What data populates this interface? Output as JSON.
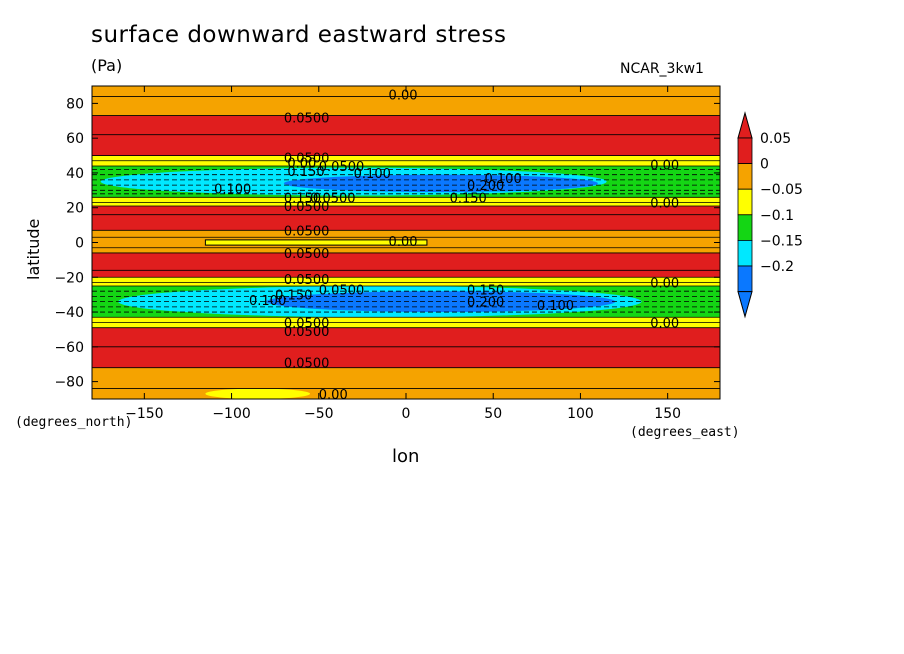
{
  "title": "surface downward eastward stress",
  "units": "(Pa)",
  "model": "NCAR_3kw1",
  "xlabel": "lon",
  "ylabel": "latitude",
  "xunits": "(degrees_east)",
  "yunits": "(degrees_north)",
  "chart_data": {
    "type": "heatmap",
    "xlim": [
      -180,
      180
    ],
    "ylim": [
      -90,
      90
    ],
    "xticks": [
      -150,
      -100,
      -50,
      0,
      50,
      100,
      150
    ],
    "yticks": [
      80,
      60,
      40,
      20,
      0,
      -20,
      -40,
      -60,
      -80
    ],
    "xtick_labels": [
      "−150",
      "−100",
      "−50",
      "0",
      "50",
      "100",
      "150"
    ],
    "ytick_labels": [
      "80",
      "60",
      "40",
      "20",
      "0",
      "−20",
      "−40",
      "−60",
      "−80"
    ],
    "colorbar": {
      "levels": [
        0.05,
        0,
        -0.05,
        -0.1,
        -0.15,
        -0.2
      ],
      "labels": [
        "0.05",
        "0",
        "−0.05",
        "−0.1",
        "−0.15",
        "−0.2"
      ],
      "colors": [
        "#e01e1e",
        "#f5a300",
        "#ffff00",
        "#14d614",
        "#00e8ff",
        "#0a78ff"
      ],
      "top_color": "#e01e1e",
      "bottom_color": "#0a78ff"
    },
    "contour_labels": [
      {
        "text": "0.00",
        "lon": -10,
        "lat": 85
      },
      {
        "text": "0.0500",
        "lon": -70,
        "lat": 72
      },
      {
        "text": "0.0500",
        "lon": -70,
        "lat": 49
      },
      {
        "text": "0.00",
        "lon": -68,
        "lat": 46
      },
      {
        "text": "0.0500",
        "lon": -50,
        "lat": 44
      },
      {
        "text": "0.150",
        "lon": -68,
        "lat": 41
      },
      {
        "text": "0.100",
        "lon": -30,
        "lat": 40
      },
      {
        "text": "0.100",
        "lon": 45,
        "lat": 37
      },
      {
        "text": "0.200",
        "lon": 35,
        "lat": 33
      },
      {
        "text": "0.100",
        "lon": -110,
        "lat": 31
      },
      {
        "text": "0.150",
        "lon": -70,
        "lat": 26
      },
      {
        "text": "0.0500",
        "lon": -55,
        "lat": 26
      },
      {
        "text": "0.150",
        "lon": 25,
        "lat": 26
      },
      {
        "text": "0.00",
        "lon": 140,
        "lat": 45
      },
      {
        "text": "0.00",
        "lon": 140,
        "lat": 23
      },
      {
        "text": "0.0500",
        "lon": -70,
        "lat": 21
      },
      {
        "text": "0.0500",
        "lon": -70,
        "lat": 7
      },
      {
        "text": "0.00",
        "lon": -10,
        "lat": 1
      },
      {
        "text": "0.0500",
        "lon": -70,
        "lat": -6
      },
      {
        "text": "0.0500",
        "lon": -70,
        "lat": -21
      },
      {
        "text": "0.0500",
        "lon": -50,
        "lat": -27
      },
      {
        "text": "0.150",
        "lon": 35,
        "lat": -27
      },
      {
        "text": "0.150",
        "lon": -75,
        "lat": -30
      },
      {
        "text": "0.100",
        "lon": -90,
        "lat": -33
      },
      {
        "text": "0.200",
        "lon": 35,
        "lat": -34
      },
      {
        "text": "0.100",
        "lon": 75,
        "lat": -36
      },
      {
        "text": "0.00",
        "lon": 140,
        "lat": -23
      },
      {
        "text": "0.00",
        "lon": 140,
        "lat": -46
      },
      {
        "text": "0.0500",
        "lon": -70,
        "lat": -46
      },
      {
        "text": "0.0500",
        "lon": -70,
        "lat": -51
      },
      {
        "text": "0.0500",
        "lon": -70,
        "lat": -69
      },
      {
        "text": "0.00",
        "lon": -50,
        "lat": -87
      }
    ]
  }
}
